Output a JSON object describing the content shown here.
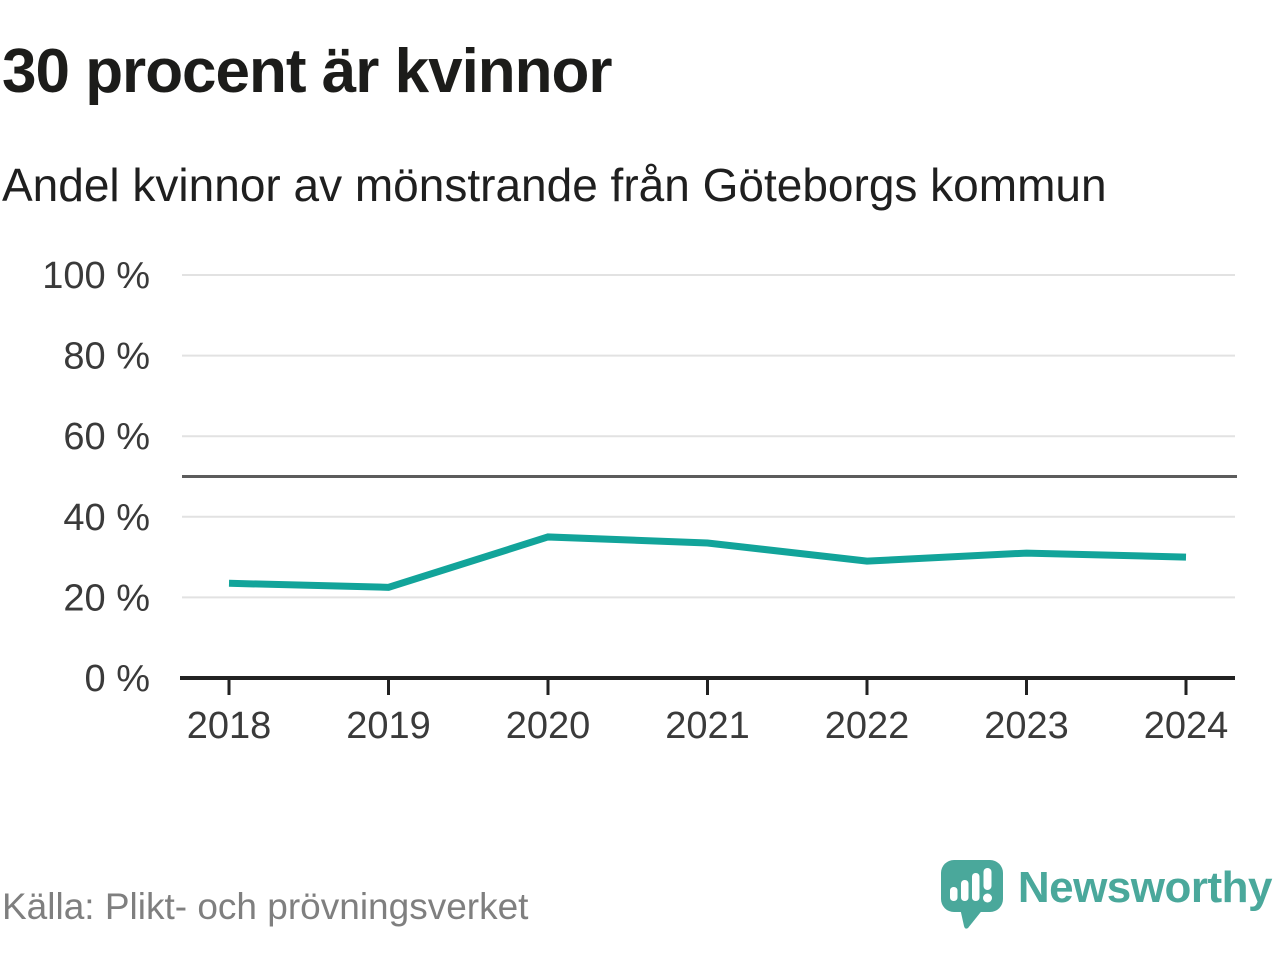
{
  "header": {
    "title": "30 procent är kvinnor",
    "subtitle": "Andel kvinnor av mönstrande från Göteborgs kommun"
  },
  "footer": {
    "source": "Källa: Plikt- och prövningsverket",
    "brand_name": "Newsworthy",
    "brand_logo_icon": "speech-bubble-bar-chart-exclamation"
  },
  "colors": {
    "line": "#12a49a",
    "brand": "#4aa89b",
    "grid": "#e2e2e2",
    "reference_line": "#5c5c5c",
    "axis": "#222222",
    "tick_label": "#3a3a3a",
    "title_text": "#1c1c1a",
    "muted_text": "#7f7f7f"
  },
  "chart_data": {
    "type": "line",
    "title": "30 procent är kvinnor",
    "subtitle": "Andel kvinnor av mönstrande från Göteborgs kommun",
    "x": [
      2018,
      2019,
      2020,
      2021,
      2022,
      2023,
      2024
    ],
    "series": [
      {
        "name": "Andel kvinnor av mönstrande från Göteborgs kommun",
        "values": [
          23.5,
          22.5,
          35,
          33.5,
          29,
          31,
          30
        ]
      }
    ],
    "xlabel": "",
    "ylabel": "",
    "ylim": [
      0,
      100
    ],
    "yticks": [
      0,
      20,
      40,
      60,
      80,
      100
    ],
    "ytick_suffix": " %",
    "reference_line": 50,
    "grid": true,
    "legend_position": "none",
    "source": "Källa: Plikt- och prövningsverket"
  }
}
